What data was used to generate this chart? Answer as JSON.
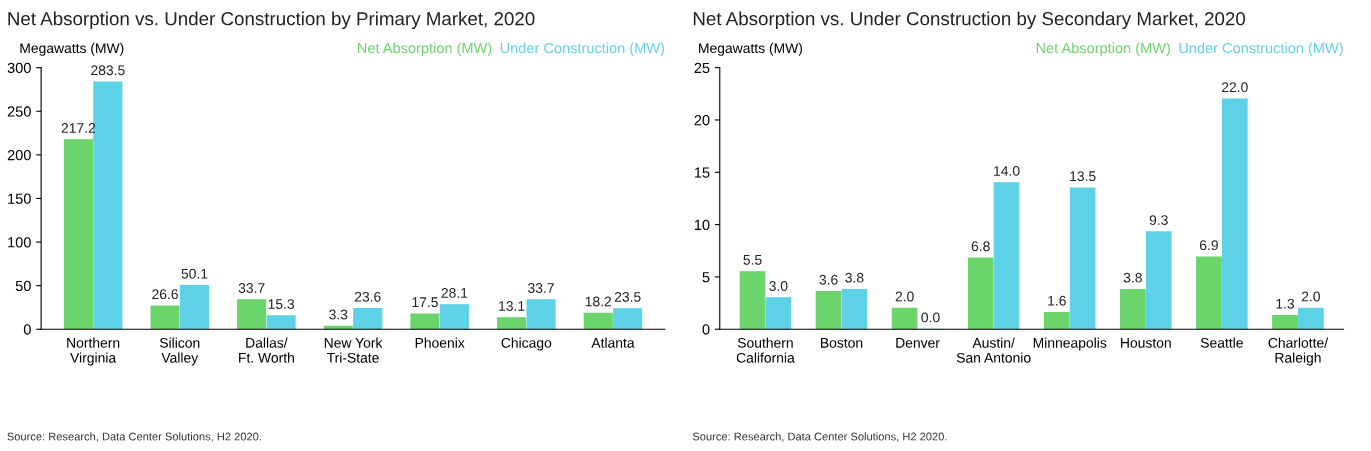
{
  "chart_data": [
    {
      "type": "bar",
      "title": "Net Absorption vs. Under Construction by Primary Market, 2020",
      "ylabel": "Megawatts (MW)",
      "categories": [
        "Northern\nVirginia",
        "Silicon\nValley",
        "Dallas/\nFt. Worth",
        "New York\nTri-State",
        "Phoenix",
        "Chicago",
        "Atlanta"
      ],
      "series": [
        {
          "name": "Net Absorption (MW)",
          "color": "#6bd46b",
          "values": [
            217.2,
            26.6,
            33.7,
            3.3,
            17.5,
            13.1,
            18.2
          ],
          "value_labels": [
            "217.2",
            "26.6",
            "33.7",
            "3.3",
            "17.5",
            "13.1",
            "18.2"
          ]
        },
        {
          "name": "Under Construction (MW)",
          "color": "#5dd2e6",
          "values": [
            283.5,
            50.1,
            15.3,
            23.6,
            28.1,
            33.7,
            23.5
          ],
          "value_labels": [
            "283.5",
            "50.1",
            "15.3",
            "23.6",
            "28.1",
            "33.7",
            "23.5"
          ]
        }
      ],
      "ylim": [
        0,
        300
      ],
      "yticks": [
        0,
        50,
        100,
        150,
        200,
        250,
        300
      ],
      "legend": "top right",
      "grid": false,
      "annotations": [
        "Source: Research, Data Center Solutions, H2 2020."
      ]
    },
    {
      "type": "bar",
      "title": "Net Absorption vs. Under Construction by Secondary Market, 2020",
      "ylabel": "Megawatts (MW)",
      "categories": [
        "Southern\nCalifornia",
        "Boston",
        "Denver",
        "Austin/\nSan Antonio",
        "Minneapolis",
        "Houston",
        "Seattle",
        "Charlotte/\nRaleigh"
      ],
      "series": [
        {
          "name": "Net Absorption (MW)",
          "color": "#6bd46b",
          "values": [
            5.5,
            3.6,
            2,
            6.8,
            1.6,
            3.8,
            6.9,
            1.3
          ],
          "value_labels": [
            "5.5",
            "3.6",
            "2.0",
            "6.8",
            "1.6",
            "3.8",
            "6.9",
            "1.3"
          ]
        },
        {
          "name": "Under Construction (MW)",
          "color": "#5dd2e6",
          "values": [
            3,
            3.8,
            0,
            14,
            13.5,
            9.3,
            22,
            2
          ],
          "value_labels": [
            "3.0",
            "3.8",
            "0.0",
            "14.0",
            "13.5",
            "9.3",
            "22.0",
            "2.0"
          ]
        }
      ],
      "ylim": [
        0,
        25
      ],
      "yticks": [
        0,
        5,
        10,
        15,
        20,
        25
      ],
      "legend": "top right",
      "grid": false,
      "annotations": [
        "Source: Research, Data Center Solutions, H2 2020."
      ]
    }
  ]
}
